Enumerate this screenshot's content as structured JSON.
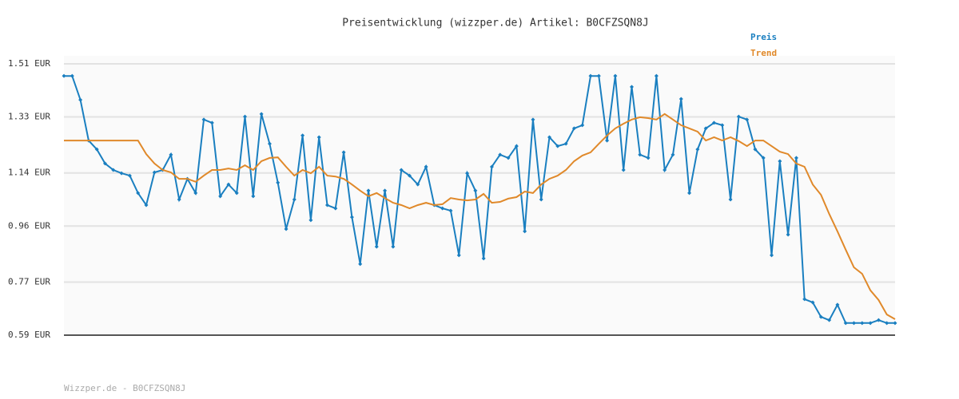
{
  "chart_data": {
    "type": "line",
    "title": "Preisentwicklung (wizzper.de) Artikel: B0CFZSQN8J",
    "footer": "Wizzper.de - B0CFZSQN8J",
    "ylim": [
      0.59,
      1.51
    ],
    "yticks": [
      {
        "value": 0.59,
        "label": "0.59 EUR"
      },
      {
        "value": 0.77,
        "label": "0.77 EUR"
      },
      {
        "value": 0.96,
        "label": "0.96 EUR"
      },
      {
        "value": 1.14,
        "label": "1.14 EUR"
      },
      {
        "value": 1.33,
        "label": "1.33 EUR"
      },
      {
        "value": 1.51,
        "label": "1.51 EUR"
      }
    ],
    "grid": true,
    "legend": "top-right",
    "series": [
      {
        "name": "Preis",
        "color": "#1a7fc0",
        "markers": true,
        "values": [
          1.469,
          1.469,
          1.388,
          1.25,
          1.22,
          1.172,
          1.15,
          1.139,
          1.131,
          1.072,
          1.031,
          1.142,
          1.15,
          1.202,
          1.05,
          1.12,
          1.072,
          1.321,
          1.31,
          1.061,
          1.101,
          1.072,
          1.331,
          1.061,
          1.34,
          1.239,
          1.107,
          0.95,
          1.05,
          1.267,
          0.98,
          1.261,
          1.031,
          1.02,
          1.21,
          0.99,
          0.831,
          1.08,
          0.89,
          1.08,
          0.89,
          1.15,
          1.131,
          1.101,
          1.161,
          1.031,
          1.02,
          1.012,
          0.861,
          1.139,
          1.08,
          0.85,
          1.161,
          1.202,
          1.191,
          1.231,
          0.942,
          1.321,
          1.05,
          1.261,
          1.231,
          1.239,
          1.291,
          1.302,
          1.469,
          1.469,
          1.25,
          1.469,
          1.15,
          1.432,
          1.202,
          1.191,
          1.469,
          1.15,
          1.202,
          1.391,
          1.072,
          1.22,
          1.291,
          1.31,
          1.302,
          1.05,
          1.331,
          1.321,
          1.22,
          1.191,
          0.861,
          1.18,
          0.931,
          1.191,
          0.712,
          0.701,
          0.652,
          0.641,
          0.693,
          0.631,
          0.631,
          0.631,
          0.631,
          0.641,
          0.631,
          0.631
        ]
      },
      {
        "name": "Trend",
        "color": "#e0892a",
        "markers": false,
        "values": [
          1.25,
          1.25,
          1.25,
          1.25,
          1.25,
          1.25,
          1.25,
          1.25,
          1.25,
          1.25,
          1.204,
          1.172,
          1.15,
          1.142,
          1.12,
          1.12,
          1.11,
          1.131,
          1.15,
          1.15,
          1.155,
          1.15,
          1.166,
          1.15,
          1.18,
          1.191,
          1.193,
          1.161,
          1.131,
          1.15,
          1.139,
          1.161,
          1.131,
          1.128,
          1.12,
          1.101,
          1.08,
          1.061,
          1.072,
          1.055,
          1.039,
          1.031,
          1.02,
          1.031,
          1.039,
          1.031,
          1.034,
          1.055,
          1.05,
          1.047,
          1.05,
          1.069,
          1.039,
          1.042,
          1.053,
          1.058,
          1.077,
          1.072,
          1.101,
          1.12,
          1.131,
          1.15,
          1.18,
          1.199,
          1.21,
          1.239,
          1.267,
          1.291,
          1.307,
          1.321,
          1.329,
          1.326,
          1.321,
          1.34,
          1.321,
          1.302,
          1.291,
          1.28,
          1.25,
          1.261,
          1.25,
          1.261,
          1.248,
          1.231,
          1.25,
          1.25,
          1.231,
          1.212,
          1.204,
          1.172,
          1.161,
          1.101,
          1.066,
          1.001,
          0.942,
          0.88,
          0.82,
          0.798,
          0.742,
          0.709,
          0.66,
          0.644
        ]
      }
    ]
  }
}
